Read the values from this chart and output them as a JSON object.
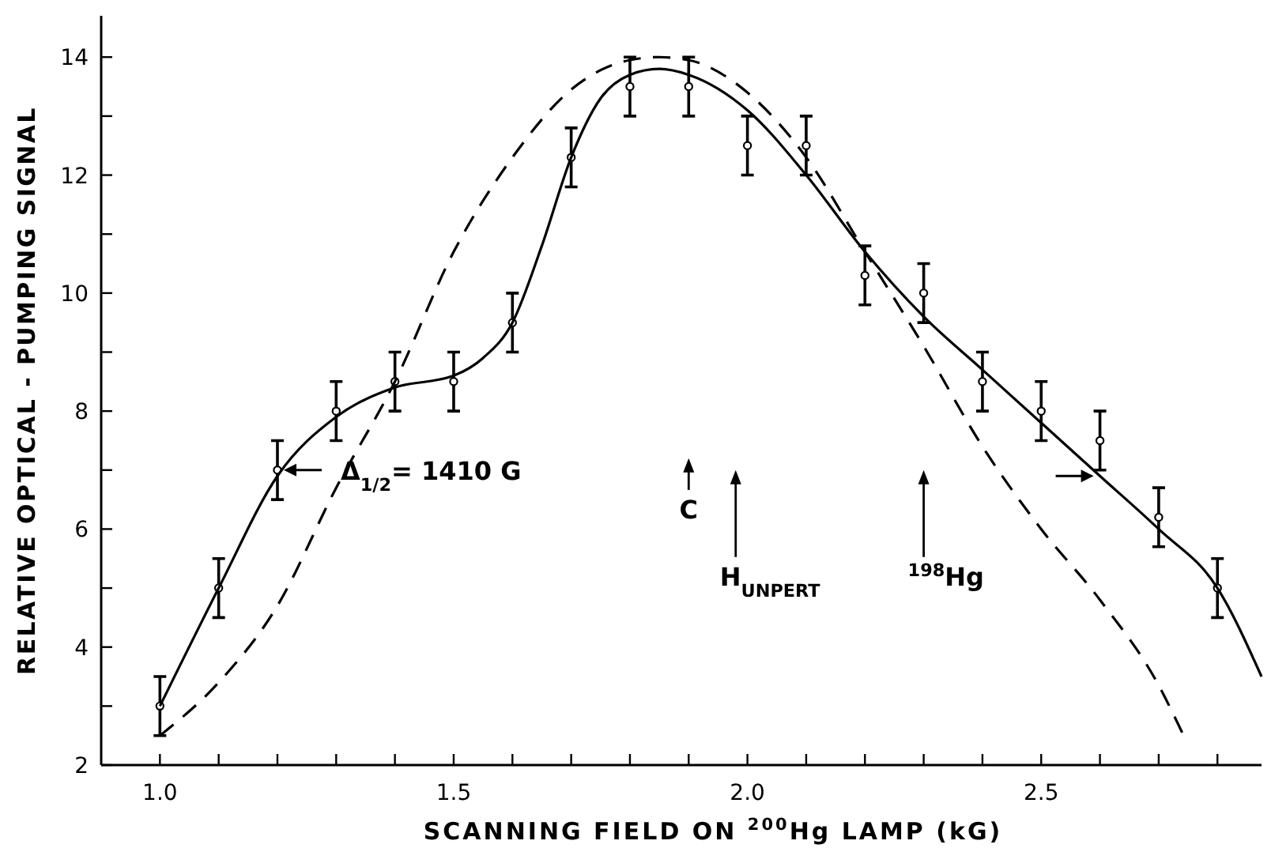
{
  "chart_data": {
    "type": "scatter",
    "xlabel": "SCANNING FIELD ON $^{200}$Hg LAMP (kG)",
    "ylabel": "RELATIVE OPTICAL - PUMPING SIGNAL",
    "xlim": [
      0.9,
      2.875
    ],
    "ylim": [
      2,
      14.7
    ],
    "xticks": [
      {
        "value": 1,
        "label": "1.0"
      },
      {
        "value": 1.1,
        "label": null
      },
      {
        "value": 1.2,
        "label": null
      },
      {
        "value": 1.3,
        "label": null
      },
      {
        "value": 1.4,
        "label": null
      },
      {
        "value": 1.5,
        "label": "1.5"
      },
      {
        "value": 1.6,
        "label": null
      },
      {
        "value": 1.7,
        "label": null
      },
      {
        "value": 1.8,
        "label": null
      },
      {
        "value": 1.9,
        "label": null
      },
      {
        "value": 2,
        "label": "2.0"
      },
      {
        "value": 2.1,
        "label": null
      },
      {
        "value": 2.2,
        "label": null
      },
      {
        "value": 2.3,
        "label": null
      },
      {
        "value": 2.4,
        "label": null
      },
      {
        "value": 2.5,
        "label": "2.5"
      },
      {
        "value": 2.6,
        "label": null
      },
      {
        "value": 2.7,
        "label": null
      },
      {
        "value": 2.8,
        "label": null
      }
    ],
    "yticks": [
      2,
      {
        "value": 3,
        "label": null
      },
      4,
      {
        "value": 5,
        "label": null
      },
      6,
      {
        "value": 7,
        "label": null
      },
      8,
      {
        "value": 9,
        "label": null
      },
      10,
      {
        "value": 11,
        "label": null
      },
      12,
      {
        "value": 13,
        "label": null
      },
      14
    ],
    "grid": false,
    "series": [
      {
        "color": "#000000",
        "marker": "circle",
        "x": [
          1.0,
          1.1,
          1.2,
          1.3,
          1.4,
          1.5,
          1.6,
          1.7,
          1.8,
          1.9,
          2.0,
          2.1,
          2.2,
          2.3,
          2.4,
          2.5,
          2.6,
          2.7,
          2.8
        ],
        "values": [
          3,
          5,
          7,
          8,
          8.5,
          8.5,
          9.5,
          12.3,
          13.5,
          13.5,
          12.5,
          12.5,
          10.3,
          10,
          8.5,
          8,
          7.5,
          6.2,
          5
        ],
        "errors": [
          0.5,
          0.5,
          0.5,
          0.5,
          0.5,
          0.5,
          0.5,
          0.5,
          0.5,
          0.5,
          0.5,
          0.5,
          0.5,
          0.5,
          0.5,
          0.5,
          0.5,
          0.5,
          0.5
        ]
      },
      {
        "type": "line",
        "color": "#000000",
        "line_style": "solid",
        "x": [
          1.0,
          1.1,
          1.2,
          1.3,
          1.4,
          1.5,
          1.55,
          1.6,
          1.65,
          1.7,
          1.75,
          1.8,
          1.85,
          1.9,
          2.0,
          2.1,
          2.2,
          2.3,
          2.4,
          2.5,
          2.6,
          2.7,
          2.8,
          2.875
        ],
        "values": [
          3.0,
          5.0,
          6.9,
          7.9,
          8.4,
          8.6,
          8.9,
          9.5,
          10.8,
          12.3,
          13.3,
          13.7,
          13.8,
          13.7,
          13.1,
          12.0,
          10.7,
          9.6,
          8.7,
          7.8,
          6.9,
          6.0,
          5.0,
          3.5
        ]
      },
      {
        "type": "line",
        "color": "#000000",
        "line_style": "dashed",
        "x": [
          1.0,
          1.1,
          1.2,
          1.3,
          1.4,
          1.5,
          1.6,
          1.7,
          1.8,
          1.85,
          1.9,
          2.0,
          2.1,
          2.2,
          2.3,
          2.4,
          2.5,
          2.6,
          2.7,
          2.74
        ],
        "values": [
          2.5,
          3.4,
          4.7,
          6.7,
          8.5,
          10.7,
          12.3,
          13.45,
          13.95,
          14.0,
          13.95,
          13.4,
          12.3,
          10.7,
          9.1,
          7.4,
          6.0,
          4.8,
          3.35,
          2.55
        ]
      }
    ],
    "annotations": [
      {
        "text": "Δ$_{1/2}$= 1410 G",
        "x": 1.2,
        "y": 7
      },
      "C",
      "H$_{UNPERT}$",
      "$^{198}$Hg"
    ]
  }
}
